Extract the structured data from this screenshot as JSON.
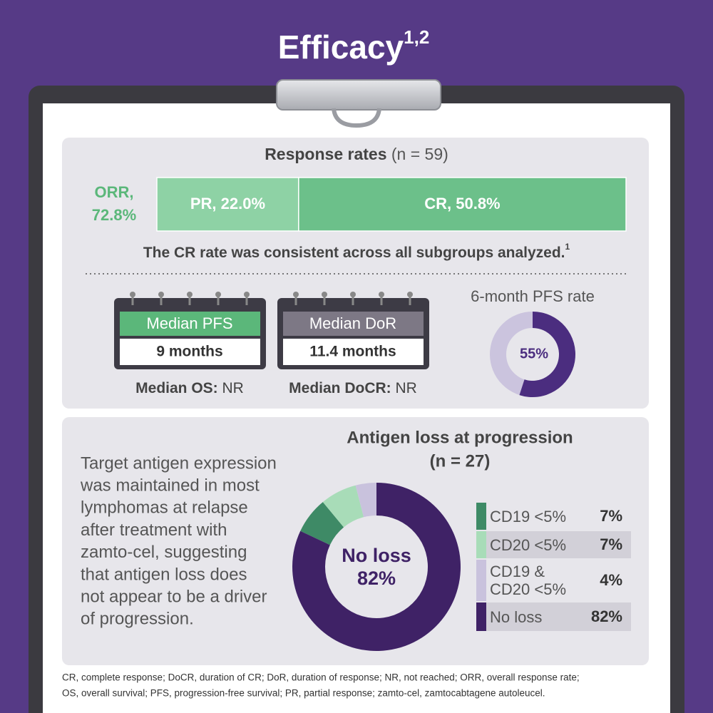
{
  "header": {
    "title": "Efficacy",
    "superscript": "1,2"
  },
  "response_rates": {
    "title": "Response rates",
    "n": "(n = 59)",
    "orr_name": "ORR,",
    "orr_value": "72.8%",
    "chart": {
      "type": "bar",
      "series": [
        {
          "name": "PR,",
          "values": [
            22.0
          ],
          "value_labels": [
            "22.0%"
          ],
          "color": "#8ed2a5"
        },
        {
          "name": "CR,",
          "values": [
            50.8
          ],
          "value_labels": [
            "50.8%"
          ],
          "color": "#6cc08a"
        }
      ]
    },
    "note": "The CR rate was consistent across all subgroups analyzed.",
    "note_superscript": "1"
  },
  "calendars": [
    {
      "label": "Median PFS",
      "value": "9 months",
      "color": "#5bb77a"
    },
    {
      "label": "Median DoR",
      "value": "11.4 months",
      "color": "#7d7885"
    }
  ],
  "medians": [
    {
      "label": "Median OS:",
      "value": "NR"
    },
    {
      "label": "Median DoCR:",
      "value": "NR"
    }
  ],
  "pfs_rate": {
    "title": "6-month PFS rate",
    "chart": {
      "type": "pie",
      "values": [
        55
      ],
      "value_labels": [
        "55%"
      ],
      "color": "#4b2d7f",
      "remainder_color": "#cbc4de"
    }
  },
  "antigen": {
    "title": "Antigen loss at progression",
    "n": "(n = 27)",
    "text": [
      "Target antigen expression",
      "was maintained in most",
      "lymphomas at relapse",
      "after treatment with",
      "zamto-cel, suggesting",
      "that antigen loss does",
      "not appear to be a driver",
      "of progression."
    ],
    "chart": {
      "type": "pie",
      "categories": [
        "CD19 <5%",
        "CD20 <5%",
        "CD19 & CD20 <5%",
        "No loss"
      ],
      "values": [
        7,
        7,
        4,
        82
      ],
      "value_labels": [
        "7%",
        "7%",
        "4%",
        "82%"
      ],
      "colors": [
        "#3e8a66",
        "#a8dcb8",
        "#c9c2dd",
        "#3f2266"
      ]
    }
  },
  "footnote": [
    "CR, complete response; DoCR, duration of CR; DoR, duration of response; NR, not reached; ORR, overall response rate;",
    "OS, overall survival; PFS, progression-free survival; PR, partial response; zamto-cel, zamtocabtagene autoleucel."
  ]
}
